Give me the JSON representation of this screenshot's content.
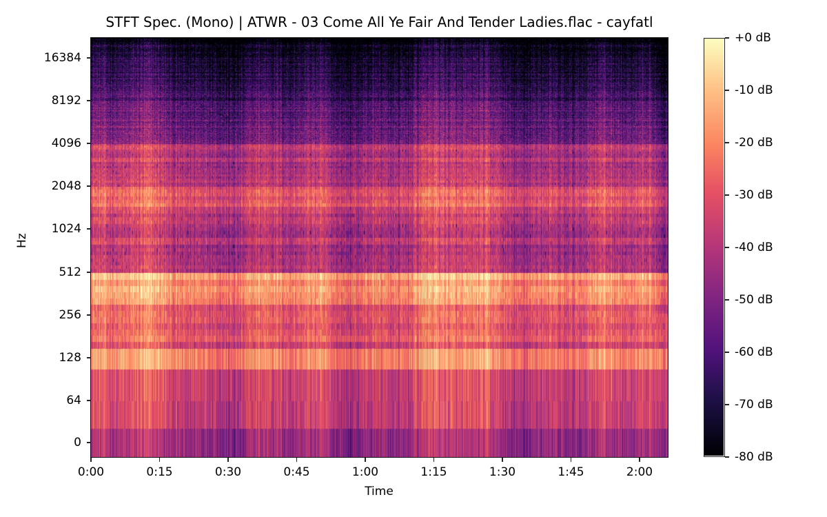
{
  "title": "STFT Spec. (Mono) | ATWR - 03 Come All Ye Fair And Tender Ladies.flac - cayfatl",
  "chart_data": {
    "type": "heatmap",
    "subtype": "spectrogram",
    "title": "STFT Spec. (Mono) | ATWR - 03 Come All Ye Fair And Tender Ladies.flac - cayfatl",
    "xlabel": "Time",
    "ylabel": "Hz",
    "x_scale": "time",
    "y_scale": "log2",
    "x_ticks": [
      "0:00",
      "0:15",
      "0:30",
      "0:45",
      "1:00",
      "1:15",
      "1:30",
      "1:45",
      "2:00"
    ],
    "x_range_seconds": [
      0,
      126
    ],
    "y_ticks": [
      "16384",
      "8192",
      "4096",
      "2048",
      "1024",
      "512",
      "256",
      "128",
      "64",
      "0"
    ],
    "y_range_hz": [
      0,
      22050
    ],
    "colormap": "magma",
    "colorbar": {
      "labels": [
        "+0 dB",
        "-10 dB",
        "-20 dB",
        "-30 dB",
        "-40 dB",
        "-50 dB",
        "-60 dB",
        "-70 dB",
        "-80 dB"
      ],
      "range_db": [
        -80,
        0
      ]
    },
    "energy_profile_db": [
      {
        "band_hz": "0-64",
        "approx_db": -42
      },
      {
        "band_hz": "64-128",
        "approx_db": -35
      },
      {
        "band_hz": "128-512",
        "approx_db": -22
      },
      {
        "band_hz": "512-2048",
        "approx_db": -32
      },
      {
        "band_hz": "2048-4096",
        "approx_db": -48
      },
      {
        "band_hz": "4096-8192",
        "approx_db": -60
      },
      {
        "band_hz": "8192-22050",
        "approx_db": -70
      }
    ],
    "grid": false,
    "legend_position": "colorbar-right"
  },
  "axes": {
    "xlabel": "Time",
    "ylabel": "Hz"
  },
  "colors": {
    "cmap_0": "#000004",
    "cmap_1": "#3b0f70",
    "cmap_2": "#8c2981",
    "cmap_3": "#de4968",
    "cmap_4": "#fe9f6d",
    "cmap_5": "#fcfdbf"
  }
}
